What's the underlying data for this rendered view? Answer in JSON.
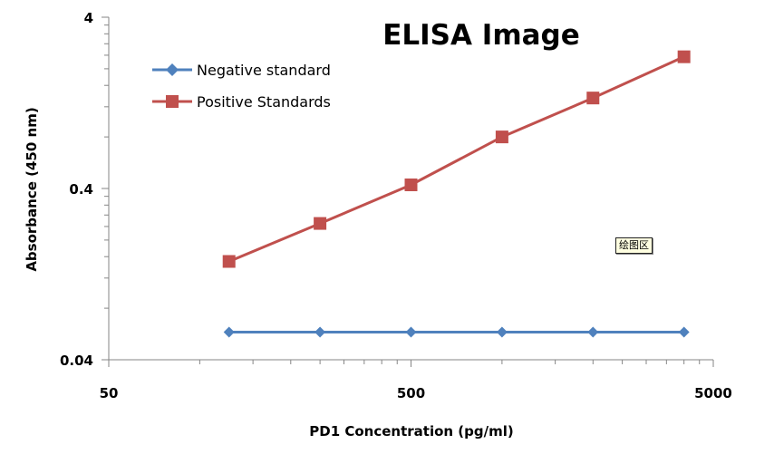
{
  "chart_data": {
    "type": "line",
    "title": "ELISA Image",
    "xlabel": "PD1 Concentration  (pg/ml)",
    "ylabel": "Absorbance (450 nm)",
    "x_scale": "log",
    "y_scale": "log",
    "xlim": [
      50,
      5000
    ],
    "ylim": [
      0.04,
      4
    ],
    "x_ticks": [
      50,
      500,
      5000
    ],
    "x_tick_labels": [
      "50",
      "500",
      "5000"
    ],
    "y_ticks": [
      0.04,
      0.4,
      4
    ],
    "y_tick_labels": [
      "0.04",
      "0.4",
      "4"
    ],
    "legend_position": "top-left",
    "series": [
      {
        "name": "Negative standard",
        "color": "#4f81bd",
        "marker": "diamond",
        "x": [
          125,
          250,
          500,
          1000,
          2000,
          4000
        ],
        "y": [
          0.058,
          0.058,
          0.058,
          0.058,
          0.058,
          0.058
        ]
      },
      {
        "name": "Positive Standards",
        "color": "#c0504d",
        "marker": "square",
        "x": [
          125,
          250,
          500,
          1000,
          2000,
          4000
        ],
        "y": [
          0.15,
          0.25,
          0.42,
          0.8,
          1.35,
          2.35
        ]
      }
    ],
    "tooltip": "绘图区"
  }
}
